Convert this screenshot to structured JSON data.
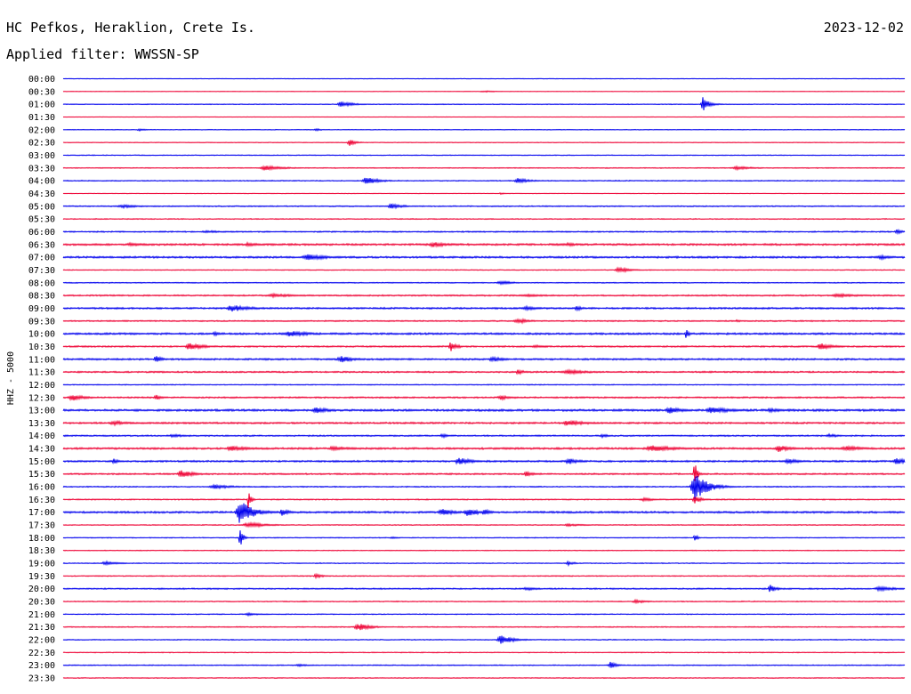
{
  "header": {
    "station": "HC Pefkos, Heraklion, Crete Is.",
    "date": "2023-12-02",
    "filter": "Applied filter: WWSSN-SP"
  },
  "colors": {
    "even_trace": "#0000ee",
    "odd_trace": "#ee0033",
    "background": "#ffffff",
    "text": "#000000"
  },
  "chart_data": {
    "type": "line",
    "title": "",
    "ylabel": "HHZ - 5000",
    "xlabel": "",
    "grid": false,
    "rows": [
      {
        "label": "00:00",
        "noise": 0.6,
        "events": []
      },
      {
        "label": "00:30",
        "noise": 0.5,
        "events": [
          {
            "x": 0.5,
            "amp": 2,
            "w": 0.02
          }
        ]
      },
      {
        "label": "01:00",
        "noise": 0.8,
        "events": [
          {
            "x": 0.33,
            "amp": 6,
            "w": 0.02
          },
          {
            "x": 0.76,
            "amp": 16,
            "w": 0.01
          }
        ]
      },
      {
        "label": "01:30",
        "noise": 0.5,
        "events": []
      },
      {
        "label": "02:00",
        "noise": 0.7,
        "events": [
          {
            "x": 0.09,
            "amp": 3,
            "w": 0.01
          },
          {
            "x": 0.3,
            "amp": 3,
            "w": 0.01
          }
        ]
      },
      {
        "label": "02:30",
        "noise": 0.8,
        "events": [
          {
            "x": 0.34,
            "amp": 8,
            "w": 0.01
          }
        ]
      },
      {
        "label": "03:00",
        "noise": 0.9,
        "events": []
      },
      {
        "label": "03:30",
        "noise": 0.9,
        "events": [
          {
            "x": 0.24,
            "amp": 6,
            "w": 0.03
          },
          {
            "x": 0.8,
            "amp": 4,
            "w": 0.03
          }
        ]
      },
      {
        "label": "04:00",
        "noise": 1.0,
        "events": [
          {
            "x": 0.36,
            "amp": 9,
            "w": 0.02
          },
          {
            "x": 0.54,
            "amp": 6,
            "w": 0.02
          }
        ]
      },
      {
        "label": "04:30",
        "noise": 0.6,
        "events": [
          {
            "x": 0.52,
            "amp": 2,
            "w": 0.01
          }
        ]
      },
      {
        "label": "05:00",
        "noise": 1.2,
        "events": [
          {
            "x": 0.07,
            "amp": 4,
            "w": 0.03
          },
          {
            "x": 0.39,
            "amp": 6,
            "w": 0.02
          }
        ]
      },
      {
        "label": "05:30",
        "noise": 1.0,
        "events": []
      },
      {
        "label": "06:00",
        "noise": 1.3,
        "events": [
          {
            "x": 0.17,
            "amp": 3,
            "w": 0.03
          },
          {
            "x": 0.99,
            "amp": 6,
            "w": 0.01
          }
        ]
      },
      {
        "label": "06:30",
        "noise": 2.0,
        "events": [
          {
            "x": 0.08,
            "amp": 5,
            "w": 0.02
          },
          {
            "x": 0.22,
            "amp": 5,
            "w": 0.02
          },
          {
            "x": 0.44,
            "amp": 6,
            "w": 0.03
          },
          {
            "x": 0.6,
            "amp": 4,
            "w": 0.02
          }
        ]
      },
      {
        "label": "07:00",
        "noise": 2.0,
        "events": [
          {
            "x": 0.29,
            "amp": 8,
            "w": 0.03
          },
          {
            "x": 0.97,
            "amp": 5,
            "w": 0.02
          }
        ]
      },
      {
        "label": "07:30",
        "noise": 0.9,
        "events": [
          {
            "x": 0.66,
            "amp": 6,
            "w": 0.02
          }
        ]
      },
      {
        "label": "08:00",
        "noise": 1.0,
        "events": [
          {
            "x": 0.52,
            "amp": 5,
            "w": 0.02
          }
        ]
      },
      {
        "label": "08:30",
        "noise": 1.5,
        "events": [
          {
            "x": 0.25,
            "amp": 4,
            "w": 0.04
          },
          {
            "x": 0.55,
            "amp": 3,
            "w": 0.04
          },
          {
            "x": 0.92,
            "amp": 4,
            "w": 0.04
          }
        ]
      },
      {
        "label": "09:00",
        "noise": 1.8,
        "events": [
          {
            "x": 0.2,
            "amp": 8,
            "w": 0.03
          },
          {
            "x": 0.55,
            "amp": 5,
            "w": 0.02
          },
          {
            "x": 0.61,
            "amp": 6,
            "w": 0.01
          }
        ]
      },
      {
        "label": "09:30",
        "noise": 1.4,
        "events": [
          {
            "x": 0.54,
            "amp": 6,
            "w": 0.02
          },
          {
            "x": 0.8,
            "amp": 3,
            "w": 0.01
          }
        ]
      },
      {
        "label": "10:00",
        "noise": 2.0,
        "events": [
          {
            "x": 0.18,
            "amp": 6,
            "w": 0.01
          },
          {
            "x": 0.27,
            "amp": 7,
            "w": 0.03
          },
          {
            "x": 0.74,
            "amp": 14,
            "w": 0.004
          }
        ]
      },
      {
        "label": "10:30",
        "noise": 1.6,
        "events": [
          {
            "x": 0.15,
            "amp": 9,
            "w": 0.02
          },
          {
            "x": 0.46,
            "amp": 12,
            "w": 0.01
          },
          {
            "x": 0.56,
            "amp": 4,
            "w": 0.02
          },
          {
            "x": 0.9,
            "amp": 8,
            "w": 0.02
          }
        ]
      },
      {
        "label": "11:00",
        "noise": 1.8,
        "events": [
          {
            "x": 0.11,
            "amp": 9,
            "w": 0.01
          },
          {
            "x": 0.33,
            "amp": 8,
            "w": 0.02
          },
          {
            "x": 0.51,
            "amp": 6,
            "w": 0.02
          }
        ]
      },
      {
        "label": "11:30",
        "noise": 1.6,
        "events": [
          {
            "x": 0.54,
            "amp": 7,
            "w": 0.01
          },
          {
            "x": 0.6,
            "amp": 5,
            "w": 0.04
          }
        ]
      },
      {
        "label": "12:00",
        "noise": 1.0,
        "events": []
      },
      {
        "label": "12:30",
        "noise": 1.6,
        "events": [
          {
            "x": 0.01,
            "amp": 8,
            "w": 0.02
          },
          {
            "x": 0.11,
            "amp": 7,
            "w": 0.01
          },
          {
            "x": 0.52,
            "amp": 5,
            "w": 0.02
          }
        ]
      },
      {
        "label": "13:00",
        "noise": 2.2,
        "events": [
          {
            "x": 0.3,
            "amp": 8,
            "w": 0.02
          },
          {
            "x": 0.72,
            "amp": 8,
            "w": 0.02
          },
          {
            "x": 0.77,
            "amp": 8,
            "w": 0.03
          },
          {
            "x": 0.84,
            "amp": 5,
            "w": 0.02
          }
        ]
      },
      {
        "label": "13:30",
        "noise": 1.8,
        "events": [
          {
            "x": 0.06,
            "amp": 5,
            "w": 0.03
          },
          {
            "x": 0.6,
            "amp": 7,
            "w": 0.03
          }
        ]
      },
      {
        "label": "14:00",
        "noise": 1.5,
        "events": [
          {
            "x": 0.13,
            "amp": 4,
            "w": 0.02
          },
          {
            "x": 0.45,
            "amp": 5,
            "w": 0.01
          },
          {
            "x": 0.64,
            "amp": 5,
            "w": 0.01
          },
          {
            "x": 0.91,
            "amp": 4,
            "w": 0.02
          }
        ]
      },
      {
        "label": "14:30",
        "noise": 2.0,
        "events": [
          {
            "x": 0.2,
            "amp": 6,
            "w": 0.03
          },
          {
            "x": 0.32,
            "amp": 5,
            "w": 0.03
          },
          {
            "x": 0.7,
            "amp": 7,
            "w": 0.04
          },
          {
            "x": 0.85,
            "amp": 8,
            "w": 0.02
          },
          {
            "x": 0.93,
            "amp": 6,
            "w": 0.03
          }
        ]
      },
      {
        "label": "15:00",
        "noise": 1.8,
        "events": [
          {
            "x": 0.06,
            "amp": 6,
            "w": 0.01
          },
          {
            "x": 0.47,
            "amp": 9,
            "w": 0.02
          },
          {
            "x": 0.6,
            "amp": 7,
            "w": 0.02
          },
          {
            "x": 0.86,
            "amp": 6,
            "w": 0.02
          },
          {
            "x": 0.99,
            "amp": 7,
            "w": 0.02
          }
        ]
      },
      {
        "label": "15:30",
        "noise": 1.6,
        "events": [
          {
            "x": 0.14,
            "amp": 9,
            "w": 0.02
          },
          {
            "x": 0.55,
            "amp": 8,
            "w": 0.01
          },
          {
            "x": 0.75,
            "amp": 34,
            "w": 0.004
          }
        ]
      },
      {
        "label": "16:00",
        "noise": 1.2,
        "events": [
          {
            "x": 0.18,
            "amp": 5,
            "w": 0.03
          },
          {
            "x": 0.75,
            "amp": 32,
            "w": 0.02
          }
        ]
      },
      {
        "label": "16:30",
        "noise": 1.2,
        "events": [
          {
            "x": 0.22,
            "amp": 22,
            "w": 0.004
          },
          {
            "x": 0.69,
            "amp": 4,
            "w": 0.02
          },
          {
            "x": 0.75,
            "amp": 10,
            "w": 0.01
          }
        ]
      },
      {
        "label": "17:00",
        "noise": 2.0,
        "events": [
          {
            "x": 0.21,
            "amp": 28,
            "w": 0.02
          },
          {
            "x": 0.26,
            "amp": 10,
            "w": 0.01
          },
          {
            "x": 0.45,
            "amp": 8,
            "w": 0.02
          },
          {
            "x": 0.48,
            "amp": 9,
            "w": 0.02
          },
          {
            "x": 0.5,
            "amp": 8,
            "w": 0.01
          }
        ]
      },
      {
        "label": "17:30",
        "noise": 1.0,
        "events": [
          {
            "x": 0.22,
            "amp": 6,
            "w": 0.03
          },
          {
            "x": 0.6,
            "amp": 3,
            "w": 0.03
          }
        ]
      },
      {
        "label": "18:00",
        "noise": 0.9,
        "events": [
          {
            "x": 0.21,
            "amp": 27,
            "w": 0.004
          },
          {
            "x": 0.39,
            "amp": 3,
            "w": 0.01
          },
          {
            "x": 0.75,
            "amp": 12,
            "w": 0.004
          }
        ]
      },
      {
        "label": "18:30",
        "noise": 0.8,
        "events": []
      },
      {
        "label": "19:00",
        "noise": 1.0,
        "events": [
          {
            "x": 0.05,
            "amp": 5,
            "w": 0.02
          },
          {
            "x": 0.6,
            "amp": 5,
            "w": 0.01
          }
        ]
      },
      {
        "label": "19:30",
        "noise": 1.0,
        "events": [
          {
            "x": 0.3,
            "amp": 6,
            "w": 0.01
          }
        ]
      },
      {
        "label": "20:00",
        "noise": 1.4,
        "events": [
          {
            "x": 0.55,
            "amp": 4,
            "w": 0.02
          },
          {
            "x": 0.84,
            "amp": 9,
            "w": 0.01
          },
          {
            "x": 0.97,
            "amp": 5,
            "w": 0.03
          }
        ]
      },
      {
        "label": "20:30",
        "noise": 1.0,
        "events": [
          {
            "x": 0.68,
            "amp": 4,
            "w": 0.02
          }
        ]
      },
      {
        "label": "21:00",
        "noise": 0.9,
        "events": [
          {
            "x": 0.22,
            "amp": 3,
            "w": 0.02
          }
        ]
      },
      {
        "label": "21:30",
        "noise": 1.0,
        "events": [
          {
            "x": 0.35,
            "amp": 9,
            "w": 0.02
          }
        ]
      },
      {
        "label": "22:00",
        "noise": 1.0,
        "events": [
          {
            "x": 0.52,
            "amp": 10,
            "w": 0.02
          }
        ]
      },
      {
        "label": "22:30",
        "noise": 0.9,
        "events": []
      },
      {
        "label": "23:00",
        "noise": 1.0,
        "events": [
          {
            "x": 0.28,
            "amp": 3,
            "w": 0.02
          },
          {
            "x": 0.65,
            "amp": 9,
            "w": 0.01
          }
        ]
      },
      {
        "label": "23:30",
        "noise": 0.9,
        "events": []
      }
    ]
  }
}
